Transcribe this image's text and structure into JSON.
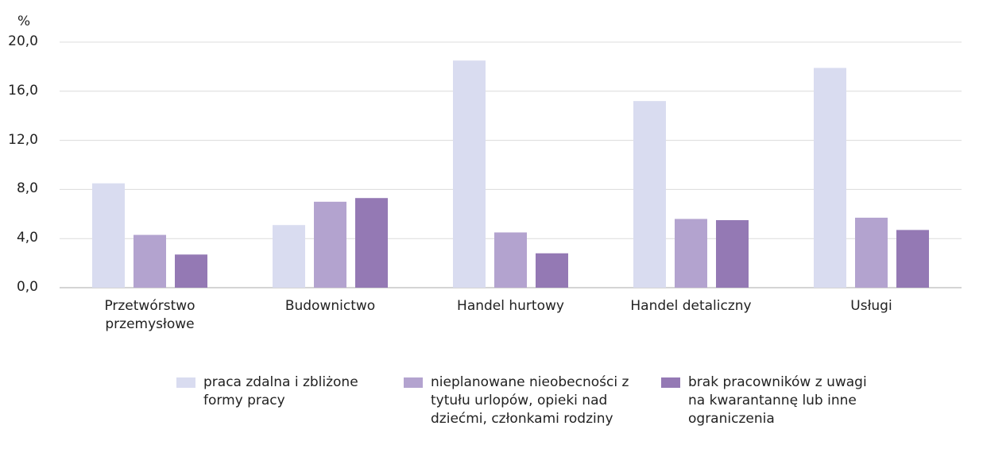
{
  "chart_data": {
    "type": "bar",
    "y_axis_label": "%",
    "categories": [
      "Przetwórstwo przemysłowe",
      "Budownictwo",
      "Handel hurtowy",
      "Handel detaliczny",
      "Usługi"
    ],
    "series": [
      {
        "name": "praca zdalna i zbliżone formy pracy",
        "color": "#d9dcf0",
        "values": [
          8.5,
          5.1,
          18.5,
          15.2,
          17.9
        ]
      },
      {
        "name": "nieplanowane nieobecności z tytułu urlopów, opieki nad dziećmi, członkami rodziny",
        "color": "#b3a3cf",
        "values": [
          4.3,
          7.0,
          4.5,
          5.6,
          5.7
        ]
      },
      {
        "name": "brak pracowników z uwagi na kwarantannę lub inne ograniczenia",
        "color": "#9479b4",
        "values": [
          2.7,
          7.3,
          2.8,
          5.5,
          4.7
        ]
      }
    ],
    "ylim": [
      0,
      20
    ],
    "yticks": [
      {
        "value": 0,
        "label": "0,0"
      },
      {
        "value": 4,
        "label": "4,0"
      },
      {
        "value": 8,
        "label": "8,0"
      },
      {
        "value": 12,
        "label": "12,0"
      },
      {
        "value": 16,
        "label": "16,0"
      },
      {
        "value": 20,
        "label": "20,0"
      }
    ],
    "grid": true,
    "legend": "bottom"
  }
}
